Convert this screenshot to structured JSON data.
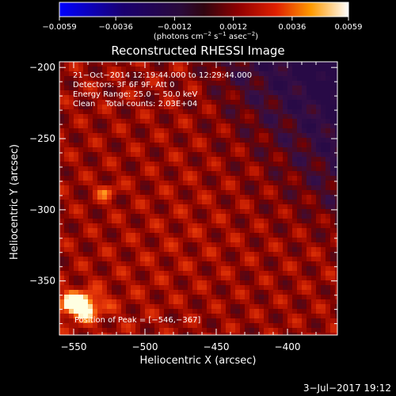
{
  "chart_data": {
    "type": "heatmap",
    "title": "Reconstructed RHESSI Image",
    "xlabel": "Heliocentric X (arcsec)",
    "ylabel": "Heliocentric Y (arcsec)",
    "xlim": [
      -560,
      -365
    ],
    "ylim": [
      -388,
      -196
    ],
    "x_ticks": [
      -550,
      -500,
      -450,
      -400
    ],
    "y_ticks": [
      -200,
      -250,
      -300,
      -350
    ],
    "x_tick_labels": [
      "−550",
      "−500",
      "−450",
      "−400"
    ],
    "y_tick_labels": [
      "−200",
      "−250",
      "−300",
      "−350"
    ],
    "colorbar": {
      "min": -0.0059,
      "max": 0.0059,
      "ticks": [
        -0.0059,
        -0.0036,
        -0.0012,
        0.0012,
        0.0036,
        0.0059
      ],
      "tick_labels": [
        "−0.0059",
        "−0.0036",
        "−0.0012",
        "0.0012",
        "0.0036",
        "0.0059"
      ],
      "unit": "(photons cm",
      "unit_sup1": "−2",
      "unit_mid": " s",
      "unit_sup2": "−1",
      "unit_mid2": " asec",
      "unit_sup3": "−2",
      "unit_end": ")"
    },
    "annotations": {
      "line1": "21−Oct−2014 12:19:44.000 to 12:29:44.000",
      "line2": "Detectors: 3F 6F 9F, Att 0",
      "line3": "Energy Range: 25.0 − 50.0 keV",
      "line4": "Clean    Total counts: 2.03E+04",
      "peak": "Position of Peak = [−546,−367]"
    },
    "peak": [
      -546,
      -367
    ]
  },
  "footer": {
    "date": "3−Jul−2017 19:12"
  }
}
